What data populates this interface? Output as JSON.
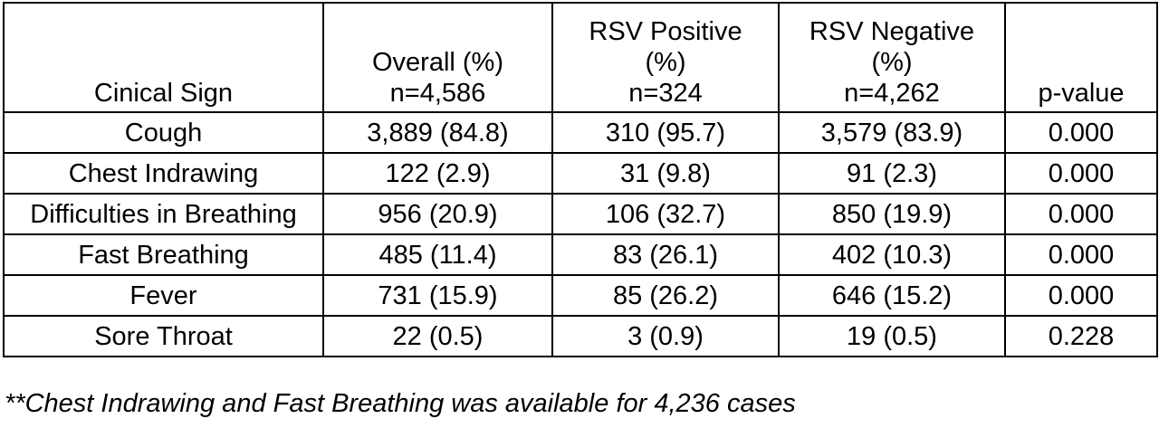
{
  "table": {
    "headers": [
      [
        "Cinical Sign"
      ],
      [
        "Overall (%)",
        "n=4,586"
      ],
      [
        "RSV Positive",
        "(%)",
        "n=324"
      ],
      [
        "RSV Negative",
        "(%)",
        "n=4,262"
      ],
      [
        "p-value"
      ]
    ],
    "rows": [
      [
        "Cough",
        "3,889 (84.8)",
        "310 (95.7)",
        "3,579 (83.9)",
        "0.000"
      ],
      [
        "Chest Indrawing",
        "122 (2.9)",
        "31 (9.8)",
        "91 (2.3)",
        "0.000"
      ],
      [
        "Difficulties in Breathing",
        "956 (20.9)",
        "106 (32.7)",
        "850 (19.9)",
        "0.000"
      ],
      [
        "Fast Breathing",
        "485 (11.4)",
        "83 (26.1)",
        "402 (10.3)",
        "0.000"
      ],
      [
        "Fever",
        "731 (15.9)",
        "85 (26.2)",
        "646 (15.2)",
        "0.000"
      ],
      [
        "Sore Throat",
        "22 (0.5)",
        "3 (0.9)",
        "19 (0.5)",
        "0.228"
      ]
    ]
  },
  "footnote": "**Chest Indrawing and Fast Breathing was available for 4,236 cases"
}
